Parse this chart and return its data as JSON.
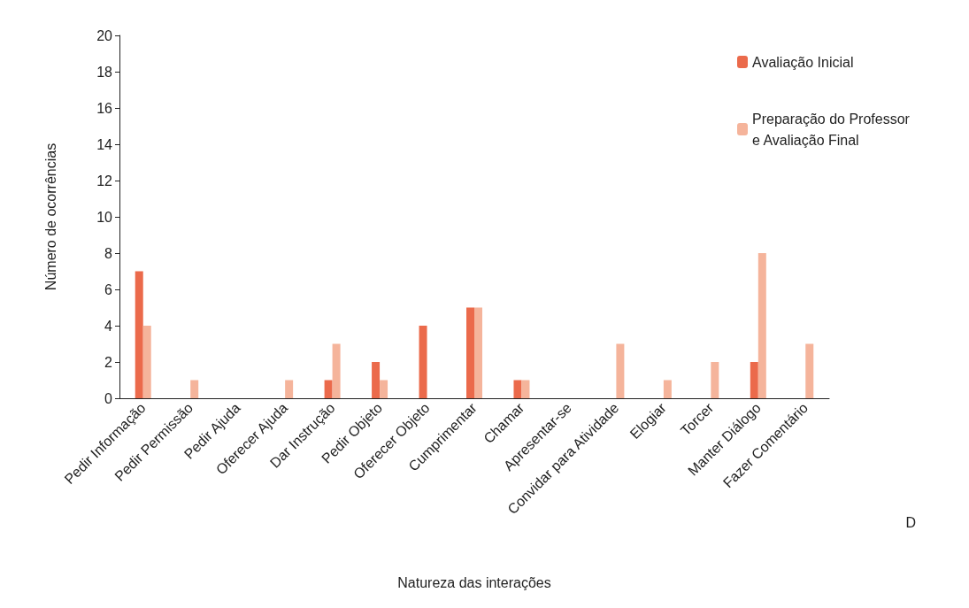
{
  "chart_data": {
    "type": "bar",
    "xlabel": "Natureza das interações",
    "ylabel": "Número de ocorrências",
    "categories": [
      "Pedir Informação",
      "Pedir Permissão",
      "Pedir Ajuda",
      "Oferecer Ajuda",
      "Dar Instrução",
      "Pedir Objeto",
      "Oferecer Objeto",
      "Cumprimentar",
      "Chamar",
      "Apresentar-se",
      "Convidar para Atividade",
      "Elogiar",
      "Torcer",
      "Manter Diálogo",
      "Fazer Comentário"
    ],
    "series": [
      {
        "name": "Avaliação Inicial",
        "color": "#eb6a4b",
        "values": [
          7,
          0,
          0,
          0,
          1,
          2,
          4,
          5,
          1,
          0,
          0,
          0,
          0,
          2,
          0
        ]
      },
      {
        "name": "Preparação do Professor e Avaliação Final",
        "color": "#f5b49b",
        "values": [
          4,
          1,
          0,
          1,
          3,
          1,
          0,
          5,
          1,
          0,
          3,
          1,
          2,
          8,
          3
        ]
      }
    ],
    "ylim": [
      0,
      20
    ],
    "yticks": [
      0,
      2,
      4,
      6,
      8,
      10,
      12,
      14,
      16,
      18,
      20
    ],
    "grid": false,
    "legend": "top right",
    "annotations": [
      "D"
    ]
  }
}
